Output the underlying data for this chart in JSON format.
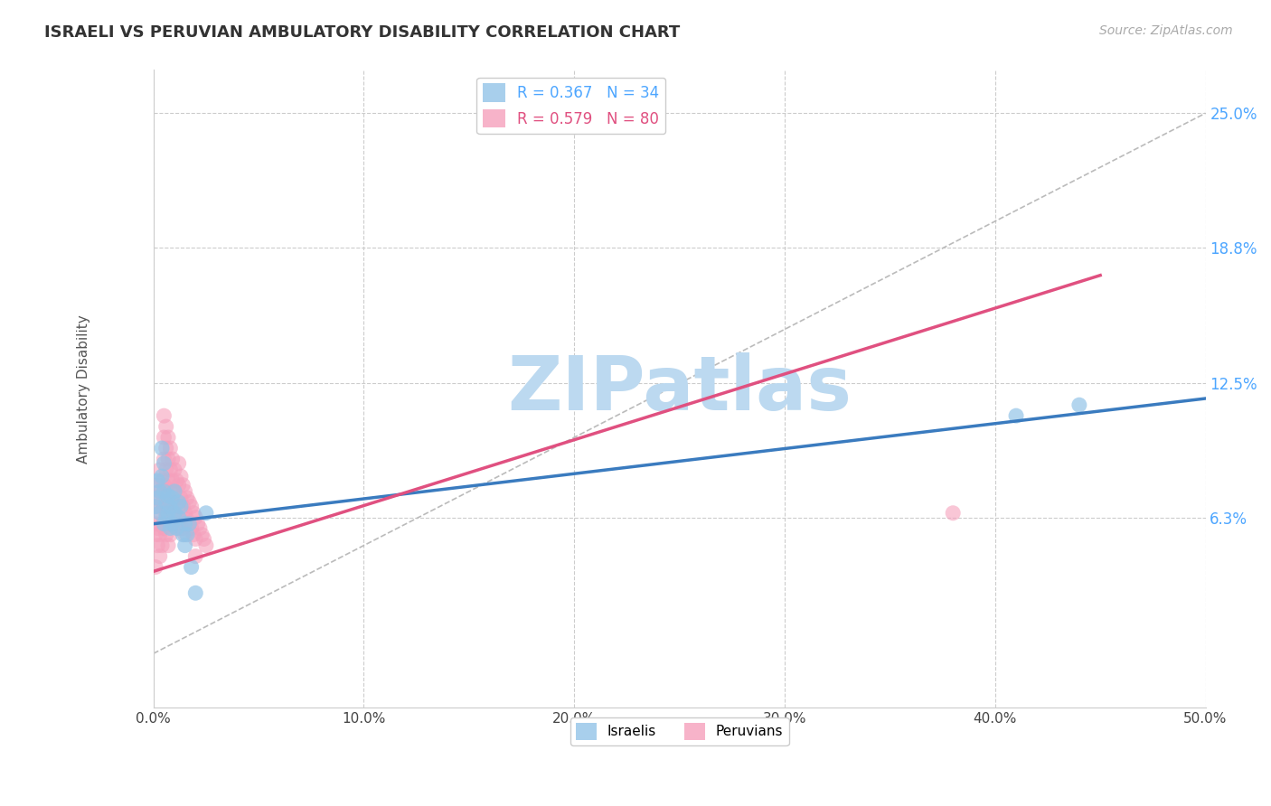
{
  "title": "ISRAELI VS PERUVIAN AMBULATORY DISABILITY CORRELATION CHART",
  "source": "Source: ZipAtlas.com",
  "ylabel": "Ambulatory Disability",
  "xlim": [
    0.0,
    0.5
  ],
  "ylim": [
    -0.025,
    0.27
  ],
  "yticks": [
    0.063,
    0.125,
    0.188,
    0.25
  ],
  "ytick_labels": [
    "6.3%",
    "12.5%",
    "18.8%",
    "25.0%"
  ],
  "xticks": [
    0.0,
    0.1,
    0.2,
    0.3,
    0.4,
    0.5
  ],
  "xtick_labels": [
    "0.0%",
    "10.0%",
    "20.0%",
    "30.0%",
    "40.0%",
    "50.0%"
  ],
  "legend_label_israeli": "R = 0.367   N = 34",
  "legend_label_peruvian": "R = 0.579   N = 80",
  "watermark": "ZIPatlas",
  "watermark_color": "#bcd9f0",
  "background_color": "#ffffff",
  "grid_color": "#cccccc",
  "israeli_color": "#93c4e8",
  "peruvian_color": "#f5a0bc",
  "israeli_line_color": "#3a7bbf",
  "peruvian_line_color": "#e05080",
  "israeli_points": [
    [
      0.001,
      0.068
    ],
    [
      0.002,
      0.072
    ],
    [
      0.002,
      0.08
    ],
    [
      0.003,
      0.065
    ],
    [
      0.003,
      0.075
    ],
    [
      0.004,
      0.095
    ],
    [
      0.004,
      0.082
    ],
    [
      0.005,
      0.088
    ],
    [
      0.005,
      0.075
    ],
    [
      0.005,
      0.06
    ],
    [
      0.006,
      0.07
    ],
    [
      0.006,
      0.063
    ],
    [
      0.007,
      0.073
    ],
    [
      0.007,
      0.065
    ],
    [
      0.008,
      0.058
    ],
    [
      0.008,
      0.068
    ],
    [
      0.009,
      0.072
    ],
    [
      0.009,
      0.06
    ],
    [
      0.01,
      0.075
    ],
    [
      0.01,
      0.065
    ],
    [
      0.011,
      0.058
    ],
    [
      0.012,
      0.063
    ],
    [
      0.012,
      0.07
    ],
    [
      0.013,
      0.068
    ],
    [
      0.014,
      0.055
    ],
    [
      0.015,
      0.06
    ],
    [
      0.015,
      0.05
    ],
    [
      0.016,
      0.055
    ],
    [
      0.017,
      0.06
    ],
    [
      0.018,
      0.04
    ],
    [
      0.02,
      0.028
    ],
    [
      0.41,
      0.11
    ],
    [
      0.44,
      0.115
    ],
    [
      0.025,
      0.065
    ]
  ],
  "peruvian_points": [
    [
      0.001,
      0.072
    ],
    [
      0.001,
      0.06
    ],
    [
      0.001,
      0.055
    ],
    [
      0.002,
      0.078
    ],
    [
      0.002,
      0.068
    ],
    [
      0.002,
      0.058
    ],
    [
      0.002,
      0.05
    ],
    [
      0.003,
      0.085
    ],
    [
      0.003,
      0.075
    ],
    [
      0.003,
      0.065
    ],
    [
      0.003,
      0.055
    ],
    [
      0.003,
      0.045
    ],
    [
      0.004,
      0.08
    ],
    [
      0.004,
      0.07
    ],
    [
      0.004,
      0.06
    ],
    [
      0.004,
      0.05
    ],
    [
      0.005,
      0.11
    ],
    [
      0.005,
      0.1
    ],
    [
      0.005,
      0.09
    ],
    [
      0.005,
      0.078
    ],
    [
      0.005,
      0.068
    ],
    [
      0.005,
      0.058
    ],
    [
      0.006,
      0.105
    ],
    [
      0.006,
      0.095
    ],
    [
      0.006,
      0.085
    ],
    [
      0.006,
      0.075
    ],
    [
      0.006,
      0.065
    ],
    [
      0.006,
      0.055
    ],
    [
      0.007,
      0.1
    ],
    [
      0.007,
      0.09
    ],
    [
      0.007,
      0.08
    ],
    [
      0.007,
      0.07
    ],
    [
      0.007,
      0.06
    ],
    [
      0.007,
      0.05
    ],
    [
      0.008,
      0.095
    ],
    [
      0.008,
      0.085
    ],
    [
      0.008,
      0.075
    ],
    [
      0.008,
      0.065
    ],
    [
      0.008,
      0.055
    ],
    [
      0.009,
      0.09
    ],
    [
      0.009,
      0.08
    ],
    [
      0.009,
      0.07
    ],
    [
      0.009,
      0.06
    ],
    [
      0.01,
      0.085
    ],
    [
      0.01,
      0.075
    ],
    [
      0.01,
      0.065
    ],
    [
      0.011,
      0.08
    ],
    [
      0.011,
      0.07
    ],
    [
      0.011,
      0.06
    ],
    [
      0.012,
      0.088
    ],
    [
      0.012,
      0.078
    ],
    [
      0.012,
      0.068
    ],
    [
      0.012,
      0.058
    ],
    [
      0.013,
      0.082
    ],
    [
      0.013,
      0.072
    ],
    [
      0.013,
      0.062
    ],
    [
      0.014,
      0.078
    ],
    [
      0.014,
      0.068
    ],
    [
      0.014,
      0.058
    ],
    [
      0.015,
      0.075
    ],
    [
      0.015,
      0.065
    ],
    [
      0.015,
      0.055
    ],
    [
      0.016,
      0.072
    ],
    [
      0.016,
      0.062
    ],
    [
      0.017,
      0.07
    ],
    [
      0.017,
      0.06
    ],
    [
      0.018,
      0.068
    ],
    [
      0.018,
      0.058
    ],
    [
      0.019,
      0.065
    ],
    [
      0.019,
      0.055
    ],
    [
      0.02,
      0.063
    ],
    [
      0.02,
      0.053
    ],
    [
      0.02,
      0.045
    ],
    [
      0.021,
      0.06
    ],
    [
      0.022,
      0.058
    ],
    [
      0.023,
      0.055
    ],
    [
      0.024,
      0.053
    ],
    [
      0.025,
      0.05
    ],
    [
      0.38,
      0.065
    ],
    [
      0.001,
      0.04
    ]
  ],
  "israeli_line": {
    "x0": 0.0,
    "y0": 0.06,
    "x1": 0.5,
    "y1": 0.118
  },
  "peruvian_line": {
    "x0": 0.0,
    "y0": 0.038,
    "x1": 0.45,
    "y1": 0.175
  },
  "ref_line": {
    "x0": 0.0,
    "y0": 0.0,
    "x1": 0.5,
    "y1": 0.25
  }
}
